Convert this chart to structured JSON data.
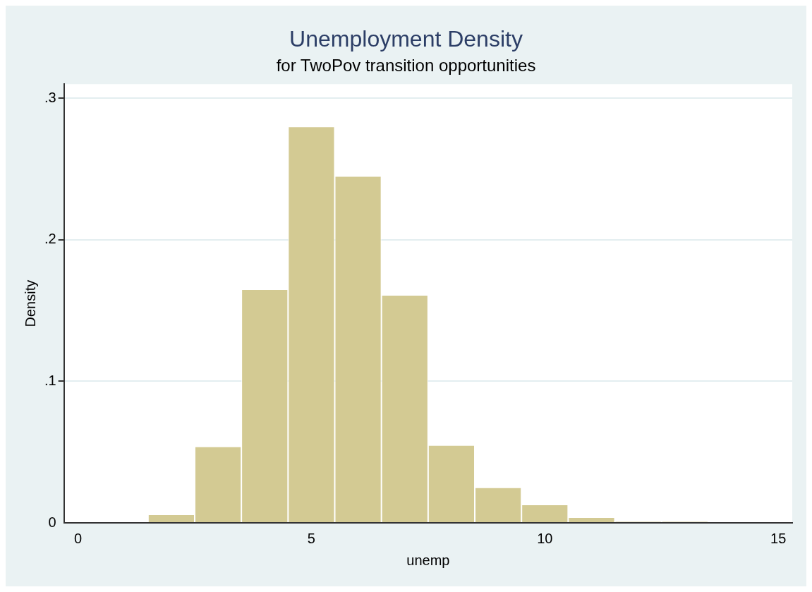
{
  "chart_data": {
    "type": "histogram",
    "title": "Unemployment Density",
    "subtitle": "for TwoPov transition opportunities",
    "xlabel": "unemp",
    "ylabel": "Density",
    "bins": [
      1.5,
      2.5,
      3.5,
      4.5,
      5.5,
      6.5,
      7.5,
      8.5,
      9.5,
      10.5,
      11.5,
      12.5,
      13.5
    ],
    "values": [
      0.006,
      0.054,
      0.165,
      0.28,
      0.245,
      0.161,
      0.055,
      0.025,
      0.013,
      0.004,
      0.001,
      0.001
    ],
    "color": "#d3ca93",
    "xlim": [
      -0.3,
      15.3
    ],
    "xticks": [
      0,
      5,
      10,
      15
    ],
    "ylim": [
      0,
      0.31
    ],
    "yticks": [
      0,
      {
        "value": 0.1,
        "label": ".1"
      },
      {
        "value": 0.2,
        "label": ".2"
      },
      {
        "value": 0.3,
        "label": ".3"
      }
    ],
    "grid": "y"
  }
}
